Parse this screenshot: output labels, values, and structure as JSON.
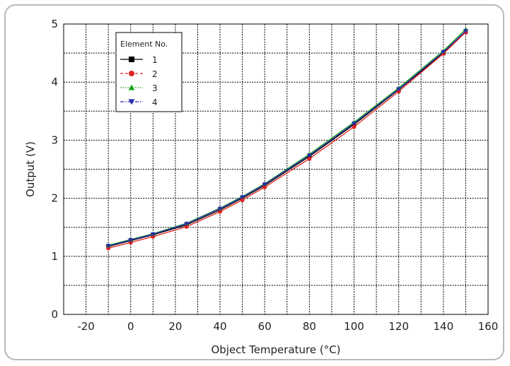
{
  "chart_data": {
    "type": "line",
    "title": "",
    "xlabel": "Object Temperature (°C)",
    "ylabel": "Output (V)",
    "xlim": [
      -30,
      160
    ],
    "ylim": [
      0,
      5
    ],
    "x_ticks": [
      -20,
      0,
      20,
      40,
      60,
      80,
      100,
      120,
      140,
      160
    ],
    "x_tick_labels": [
      "-20",
      "0",
      "20",
      "40",
      "60",
      "80",
      "100",
      "120",
      "140",
      "160"
    ],
    "y_ticks": [
      0,
      1,
      2,
      3,
      4,
      5
    ],
    "y_tick_labels": [
      "0",
      "1",
      "2",
      "3",
      "4",
      "5"
    ],
    "grid": true,
    "legend": {
      "title": "Element No.",
      "placement": "top-left"
    },
    "x": [
      -10,
      0,
      10,
      25,
      40,
      50,
      60,
      80,
      100,
      120,
      140,
      150
    ],
    "series": [
      {
        "name": "1",
        "color": "#000000",
        "marker": "square",
        "dash": "solid",
        "values": [
          1.17,
          1.27,
          1.37,
          1.54,
          1.8,
          2.0,
          2.22,
          2.72,
          3.27,
          3.87,
          4.5,
          4.87
        ]
      },
      {
        "name": "2",
        "color": "#e02020",
        "marker": "circle",
        "dash": "dashed",
        "values": [
          1.14,
          1.24,
          1.34,
          1.51,
          1.77,
          1.97,
          2.19,
          2.68,
          3.23,
          3.84,
          4.49,
          4.86
        ]
      },
      {
        "name": "3",
        "color": "#1aa51a",
        "marker": "triangle-up",
        "dash": "dotted",
        "values": [
          1.19,
          1.29,
          1.39,
          1.57,
          1.83,
          2.03,
          2.25,
          2.76,
          3.31,
          3.9,
          4.54,
          4.91
        ]
      },
      {
        "name": "4",
        "color": "#2a2ab0",
        "marker": "triangle-down",
        "dash": "dashdot",
        "values": [
          1.18,
          1.28,
          1.38,
          1.56,
          1.82,
          2.02,
          2.24,
          2.74,
          3.29,
          3.88,
          4.52,
          4.88
        ]
      }
    ]
  }
}
